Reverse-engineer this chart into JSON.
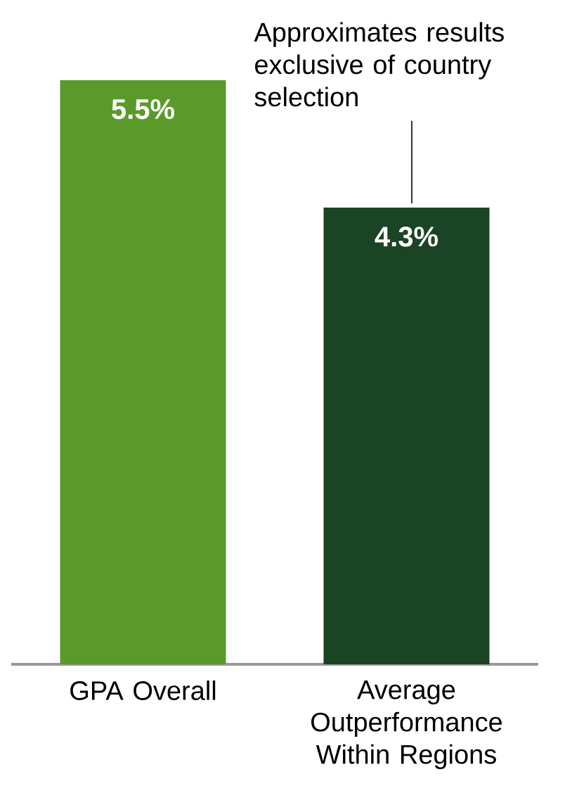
{
  "chart_data": {
    "type": "bar",
    "categories": [
      "GPA Overall",
      "Average Outperformance Within Regions"
    ],
    "values": [
      5.5,
      4.3
    ],
    "colors": [
      "#5a9a2a",
      "#1b4424"
    ],
    "value_labels": [
      "5.5%",
      "4.3%"
    ],
    "annotations": [
      {
        "text": "Approximates results exclusive of country selection",
        "x": "Average Outperformance Within Regions",
        "y": 4.3
      }
    ]
  }
}
